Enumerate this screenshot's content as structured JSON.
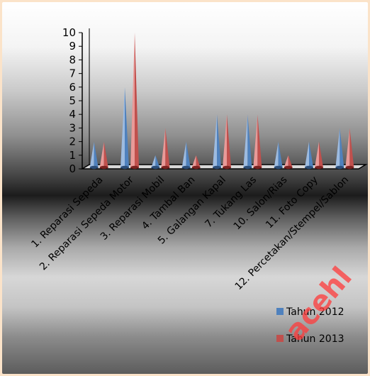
{
  "chart_data": {
    "type": "bar",
    "style": "3d-cone",
    "categories": [
      "1. Reparasi Sepeda",
      "2. Reparasi Sepeda Motor",
      "3. Reparasi Mobil",
      "4. Tambal Ban",
      "5. Galangan Kapal",
      "7. Tukang Las",
      "10. Salon/Rias",
      "11. Foto Copy",
      "12. Percetakan/Stempel/Sablon"
    ],
    "series": [
      {
        "name": "Tahun 2012",
        "values": [
          2,
          6,
          1,
          2,
          4,
          4,
          2,
          2,
          3
        ],
        "color": "#4f81bd"
      },
      {
        "name": "Tahun 2013",
        "values": [
          2,
          10,
          3,
          1,
          4,
          4,
          1,
          2,
          3
        ],
        "color": "#c0504d"
      }
    ],
    "yticks": [
      "0",
      "1",
      "2",
      "3",
      "4",
      "5",
      "6",
      "7",
      "8",
      "9",
      "10"
    ],
    "ylim": [
      0,
      10
    ],
    "grid": false,
    "legend_position": "bottom-right",
    "title": "",
    "xlabel": "",
    "ylabel": ""
  },
  "watermark": {
    "text": "acehl",
    "color": "#ff3b3b"
  }
}
